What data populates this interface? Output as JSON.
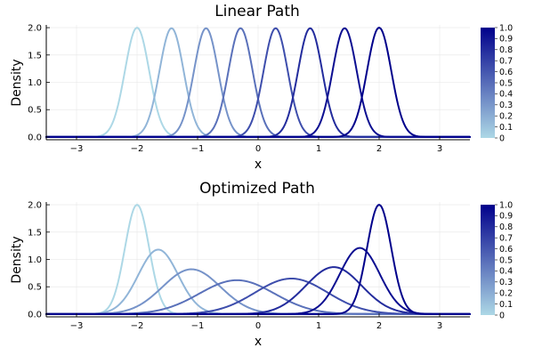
{
  "chart_data": [
    {
      "type": "line",
      "title": "Linear Path",
      "xlabel": "x",
      "ylabel": "Density",
      "xlim": [
        -3.5,
        3.5
      ],
      "ylim": [
        -0.05,
        2.05
      ],
      "xticks": [
        -3,
        -2,
        -1,
        0,
        1,
        2,
        3
      ],
      "xtick_labels": [
        "−3",
        "−2",
        "−1",
        "0",
        "1",
        "2",
        "3"
      ],
      "yticks": [
        0.0,
        0.5,
        1.0,
        1.5,
        2.0
      ],
      "ytick_labels": [
        "0.0",
        "0.5",
        "1.0",
        "1.5",
        "2.0"
      ],
      "grid": true,
      "legend": "none",
      "series": [
        {
          "t": 0.0,
          "color": "#add8e6",
          "mean": -2.0,
          "std": 0.2,
          "peak": 2.0
        },
        {
          "t": 0.143,
          "color": "#91b5d8",
          "mean": -1.43,
          "std": 0.2,
          "peak": 1.99
        },
        {
          "t": 0.286,
          "color": "#7693c9",
          "mean": -0.86,
          "std": 0.2,
          "peak": 1.99
        },
        {
          "t": 0.429,
          "color": "#5a71ba",
          "mean": -0.29,
          "std": 0.2,
          "peak": 1.99
        },
        {
          "t": 0.571,
          "color": "#3e4eac",
          "mean": 0.29,
          "std": 0.2,
          "peak": 1.99
        },
        {
          "t": 0.714,
          "color": "#232c9d",
          "mean": 0.86,
          "std": 0.2,
          "peak": 1.99
        },
        {
          "t": 0.857,
          "color": "#0c0e91",
          "mean": 1.43,
          "std": 0.2,
          "peak": 1.99
        },
        {
          "t": 1.0,
          "color": "#00008b",
          "mean": 2.0,
          "std": 0.2,
          "peak": 2.0
        }
      ]
    },
    {
      "type": "line",
      "title": "Optimized Path",
      "xlabel": "x",
      "ylabel": "Density",
      "xlim": [
        -3.5,
        3.5
      ],
      "ylim": [
        -0.05,
        2.05
      ],
      "xticks": [
        -3,
        -2,
        -1,
        0,
        1,
        2,
        3
      ],
      "xtick_labels": [
        "−3",
        "−2",
        "−1",
        "0",
        "1",
        "2",
        "3"
      ],
      "yticks": [
        0.0,
        0.5,
        1.0,
        1.5,
        2.0
      ],
      "ytick_labels": [
        "0.0",
        "0.5",
        "1.0",
        "1.5",
        "2.0"
      ],
      "grid": true,
      "legend": "none",
      "series": [
        {
          "t": 0.0,
          "color": "#add8e6",
          "mean": -2.0,
          "std": 0.2,
          "peak": 2.0
        },
        {
          "t": 0.143,
          "color": "#91b5d8",
          "mean": -1.65,
          "std": 0.33,
          "peak": 1.18
        },
        {
          "t": 0.286,
          "color": "#7693c9",
          "mean": -1.1,
          "std": 0.48,
          "peak": 0.82
        },
        {
          "t": 0.429,
          "color": "#5a71ba",
          "mean": -0.35,
          "std": 0.62,
          "peak": 0.62
        },
        {
          "t": 0.571,
          "color": "#3e4eac",
          "mean": 0.55,
          "std": 0.6,
          "peak": 0.65
        },
        {
          "t": 0.714,
          "color": "#232c9d",
          "mean": 1.25,
          "std": 0.46,
          "peak": 0.86
        },
        {
          "t": 0.857,
          "color": "#0c0e91",
          "mean": 1.68,
          "std": 0.33,
          "peak": 1.21
        },
        {
          "t": 1.0,
          "color": "#00008b",
          "mean": 2.0,
          "std": 0.2,
          "peak": 2.0
        }
      ]
    }
  ],
  "colorbar": {
    "ticks": [
      0,
      0.1,
      0.2,
      0.3,
      0.4,
      0.5,
      0.6,
      0.7,
      0.8,
      0.9,
      1.0
    ],
    "tick_labels": [
      "0",
      "0.1",
      "0.2",
      "0.3",
      "0.4",
      "0.5",
      "0.6",
      "0.7",
      "0.8",
      "0.9",
      "1.0"
    ],
    "color_low": "#add8e6",
    "color_high": "#00008b"
  }
}
